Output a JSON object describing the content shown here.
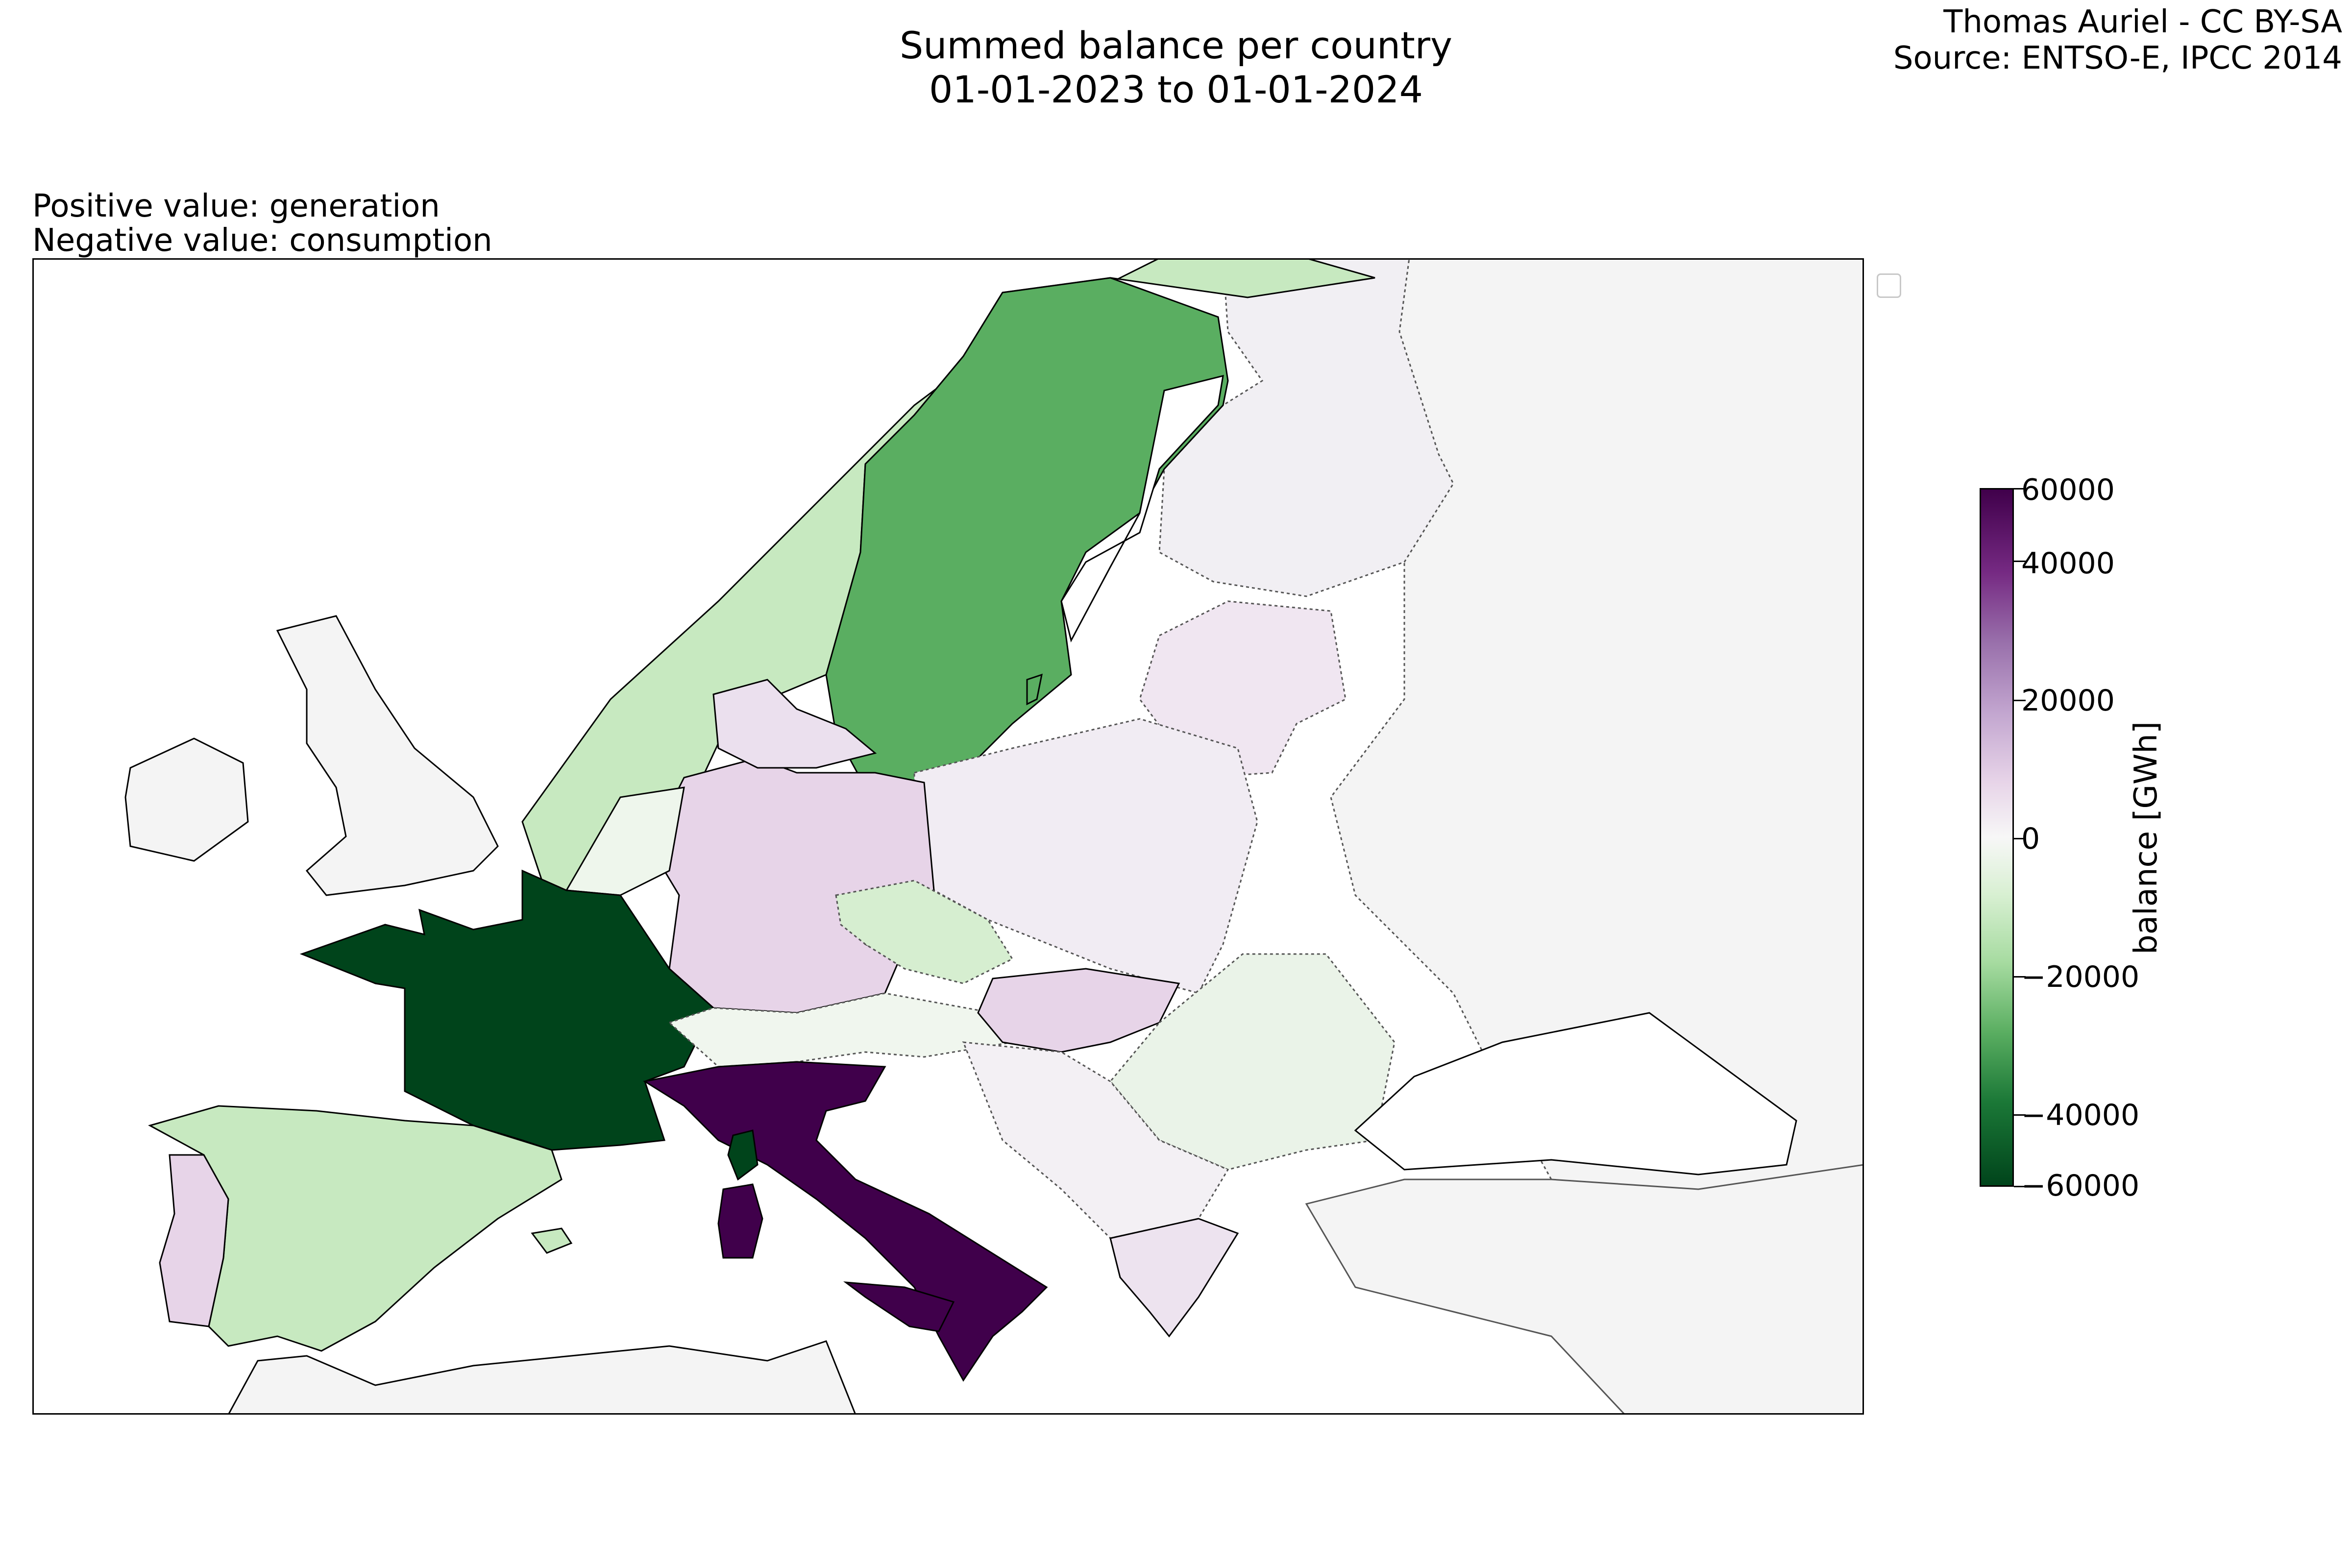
{
  "title": {
    "line1": "Summed balance per country",
    "line2": "01-01-2023 to 01-01-2024"
  },
  "credit": {
    "line1": "Thomas Auriel - CC BY-SA",
    "line2": "Source: ENTSO-E, IPCC 2014"
  },
  "subtitle": {
    "line1": "Positive value: generation",
    "line2": "Negative value: consumption"
  },
  "colorbar": {
    "label": "balance [GWh]",
    "ticks": [
      "60000",
      "40000",
      "20000",
      "0",
      "−20000",
      "−40000",
      "−60000"
    ],
    "tick_values": [
      60000,
      40000,
      20000,
      0,
      -20000,
      -40000,
      -60000
    ],
    "vmin": -60000,
    "vmax": 60000,
    "colormap": "PRGn_r"
  },
  "colors": {
    "italy": "#40004b",
    "germany": "#e7d4e8",
    "france": "#00441b",
    "sweden": "#5aae61",
    "norway_spain": "#c7e9c0",
    "neutral": "#f5f5f5",
    "sea": "#ffffff",
    "border": "#000000"
  },
  "regions": [
    {
      "name": "France",
      "level": "very strong consumption"
    },
    {
      "name": "Italy",
      "level": "very strong generation"
    },
    {
      "name": "Sweden",
      "level": "strong consumption"
    },
    {
      "name": "Norway",
      "level": "moderate consumption"
    },
    {
      "name": "Spain",
      "level": "moderate consumption"
    },
    {
      "name": "Germany",
      "level": "moderate generation"
    },
    {
      "name": "Portugal",
      "level": "moderate generation"
    },
    {
      "name": "Hungary",
      "level": "moderate generation"
    },
    {
      "name": "Czechia",
      "level": "mild consumption"
    },
    {
      "name": "Poland",
      "level": "mild generation"
    },
    {
      "name": "Finland",
      "level": "mild generation"
    }
  ]
}
